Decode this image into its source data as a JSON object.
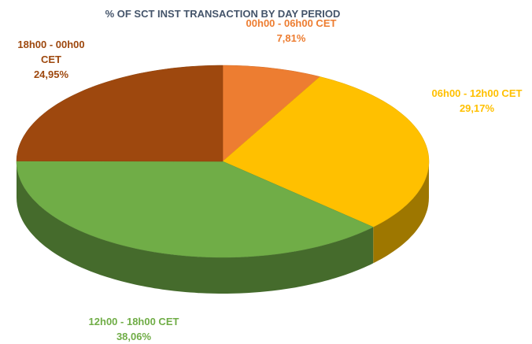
{
  "chart_data": {
    "type": "pie",
    "title": "% OF SCT INST TRANSACTION BY DAY PERIOD",
    "categories": [
      "00h00 - 06h00 CET",
      "06h00 - 12h00 CET",
      "12h00 - 18h00 CET",
      "18h00 - 00h00 CET"
    ],
    "values": [
      7.81,
      29.17,
      38.06,
      24.95
    ],
    "value_labels": [
      "7,81%",
      "29,17%",
      "38,06%",
      "24,95%"
    ],
    "colors": [
      "#ED7D31",
      "#FFC000",
      "#70AD47",
      "#9E480E"
    ]
  }
}
